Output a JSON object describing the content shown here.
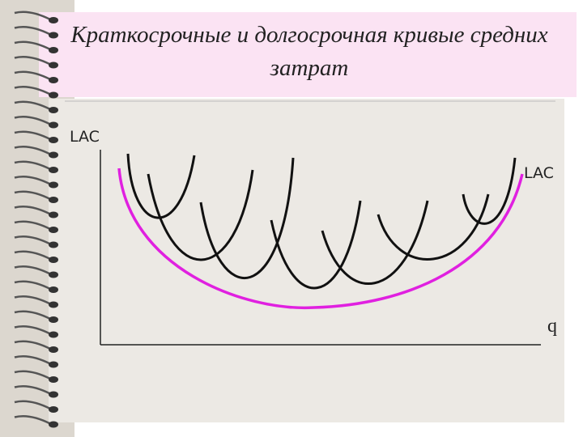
{
  "header": {
    "title_line1": "Краткосрочные и долгосрочная кривые средних",
    "title_line2": "затрат"
  },
  "diagram": {
    "y_axis_label": "LAC",
    "curve_label": "LAC",
    "x_axis_label": "q"
  }
}
